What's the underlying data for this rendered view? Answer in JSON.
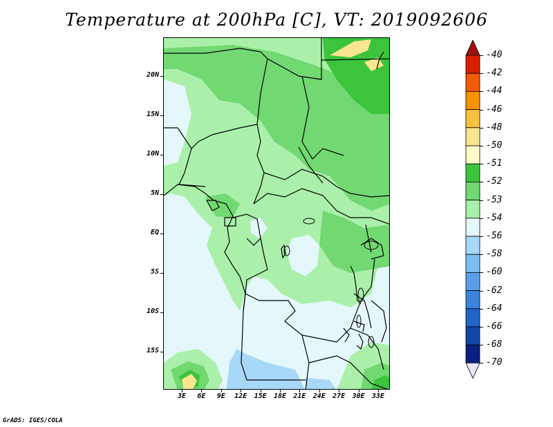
{
  "title": "Temperature at 200hPa [C], VT: 2019092606",
  "credit": "GrADS: IGES/COLA",
  "y_ticks": [
    "20N",
    "15N",
    "10N",
    "5N",
    "EQ",
    "5S",
    "10S",
    "15S"
  ],
  "x_ticks": [
    "3E",
    "6E",
    "9E",
    "12E",
    "15E",
    "18E",
    "21E",
    "24E",
    "27E",
    "30E",
    "33E"
  ],
  "colorbar": {
    "labels": [
      "-40",
      "-42",
      "-44",
      "-46",
      "-48",
      "-50",
      "-51",
      "-52",
      "-53",
      "-54",
      "-56",
      "-58",
      "-60",
      "-62",
      "-64",
      "-66",
      "-68",
      "-70"
    ],
    "colors": [
      "#a01010",
      "#d82000",
      "#f05a00",
      "#f59300",
      "#f8c040",
      "#f8e690",
      "#fffac8",
      "#3cc43c",
      "#72d872",
      "#aaf0aa",
      "#e4f8fc",
      "#a8d8f8",
      "#7cbcf0",
      "#5aa0e8",
      "#3a82dc",
      "#2064c8",
      "#1446a8",
      "#0a2080",
      "#e8e8f8"
    ]
  }
}
